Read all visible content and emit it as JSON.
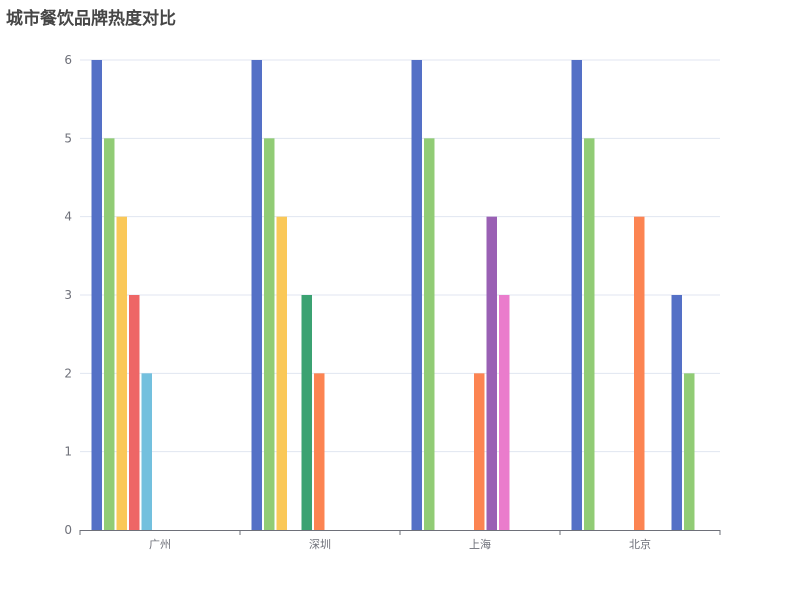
{
  "chart_data": {
    "type": "bar",
    "title": "城市餐饮品牌热度对比",
    "xlabel": "",
    "ylabel": "",
    "ylim": [
      0,
      6
    ],
    "yticks": [
      0,
      1,
      2,
      3,
      4,
      5,
      6
    ],
    "grid": true,
    "legend": "none",
    "categories": [
      "广州",
      "深圳",
      "上海",
      "北京"
    ],
    "groups": [
      {
        "category": "广州",
        "bars": [
          {
            "value": 6,
            "color": "#5470c6"
          },
          {
            "value": 5,
            "color": "#91cc75"
          },
          {
            "value": 4,
            "color": "#fac858"
          },
          {
            "value": 3,
            "color": "#ee6666"
          },
          {
            "value": 2,
            "color": "#73c0de"
          }
        ]
      },
      {
        "category": "深圳",
        "bars": [
          {
            "value": 6,
            "color": "#5470c6"
          },
          {
            "value": 5,
            "color": "#91cc75"
          },
          {
            "value": 4,
            "color": "#fac858"
          },
          {
            "value": null,
            "color": "#ee6666"
          },
          {
            "value": 3,
            "color": "#3ba272"
          },
          {
            "value": 2,
            "color": "#fc8452"
          }
        ]
      },
      {
        "category": "上海",
        "bars": [
          {
            "value": 6,
            "color": "#5470c6"
          },
          {
            "value": 5,
            "color": "#91cc75"
          },
          {
            "value": null,
            "color": "#fac858"
          },
          {
            "value": null,
            "color": "#ee6666"
          },
          {
            "value": null,
            "color": "#73c0de"
          },
          {
            "value": 2,
            "color": "#fc8452"
          },
          {
            "value": 4,
            "color": "#9a60b4"
          },
          {
            "value": 3,
            "color": "#ea7ccc"
          }
        ]
      },
      {
        "category": "北京",
        "bars": [
          {
            "value": 6,
            "color": "#5470c6"
          },
          {
            "value": 5,
            "color": "#91cc75"
          },
          {
            "value": null,
            "color": "#fac858"
          },
          {
            "value": null,
            "color": "#ee6666"
          },
          {
            "value": null,
            "color": "#73c0de"
          },
          {
            "value": 4,
            "color": "#fc8452"
          },
          {
            "value": null,
            "color": "#9a60b4"
          },
          {
            "value": null,
            "color": "#ea7ccc"
          },
          {
            "value": 3,
            "color": "#5470c6"
          },
          {
            "value": 2,
            "color": "#91cc75"
          }
        ]
      }
    ]
  }
}
